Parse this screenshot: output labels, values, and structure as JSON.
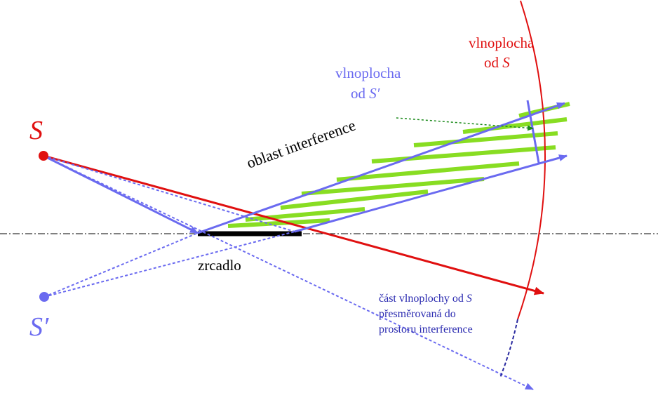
{
  "labels": {
    "source": "S",
    "image": "S′",
    "wavefront_s": {
      "line1": "vlnoplocha",
      "line2": "od",
      "symbol": "S"
    },
    "wavefront_s_prime": {
      "line1": "vlnoplocha",
      "line2": "od",
      "symbol": "S′"
    },
    "interference_region": "oblast interference",
    "mirror": "zrcadlo",
    "redirected": {
      "line1": "část vlnoplochy od",
      "symbol": "S",
      "line2": "přesměrovaná do",
      "line3": "prostoru interference"
    }
  }
}
